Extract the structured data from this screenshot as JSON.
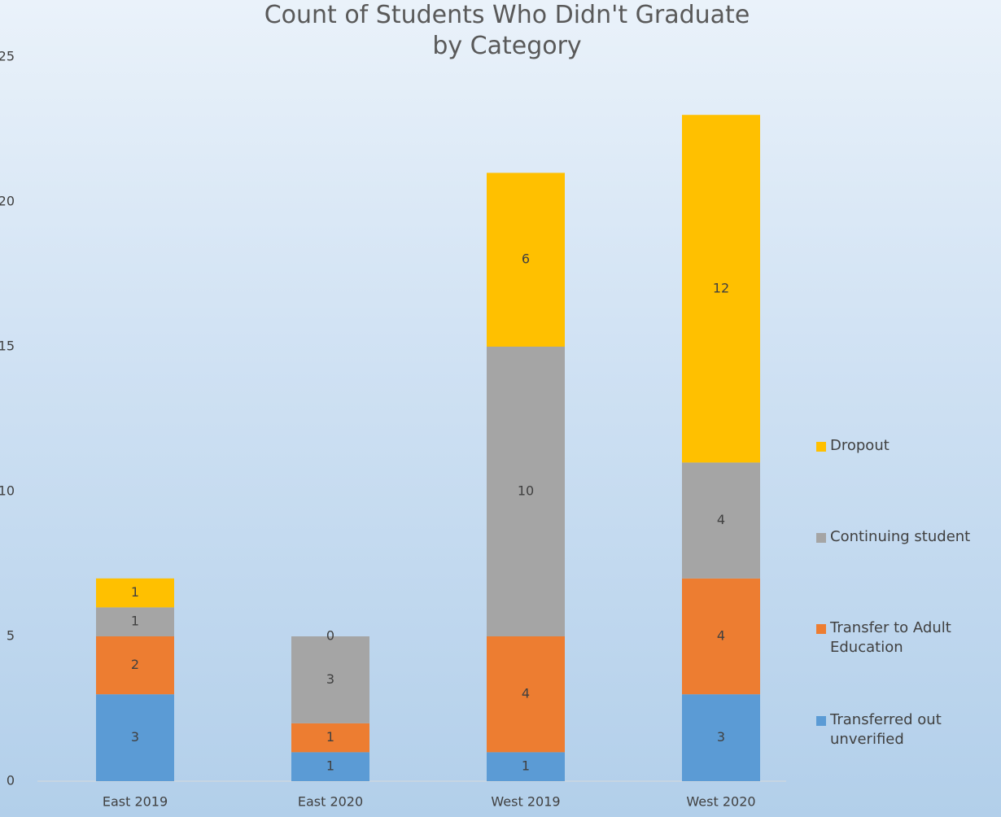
{
  "chart_data": {
    "type": "stacked_bar",
    "title": "Count of Students Who Didn't Graduate\nby Category",
    "categories": [
      "East 2019",
      "East 2020",
      "West 2019",
      "West 2020"
    ],
    "series": [
      {
        "name": "Transferred out unverified",
        "color": "#5b9bd5",
        "values": [
          3,
          1,
          1,
          3
        ]
      },
      {
        "name": "Transfer to Adult Education",
        "color": "#ed7d31",
        "values": [
          2,
          1,
          4,
          4
        ]
      },
      {
        "name": "Continuing student",
        "color": "#a5a5a5",
        "values": [
          1,
          3,
          10,
          4
        ]
      },
      {
        "name": "Dropout",
        "color": "#ffc000",
        "values": [
          1,
          0,
          6,
          12
        ]
      }
    ],
    "ylim": [
      0,
      25
    ],
    "yticks": [
      0,
      5,
      10,
      15,
      20,
      25
    ],
    "grid": false,
    "legend": "right"
  }
}
